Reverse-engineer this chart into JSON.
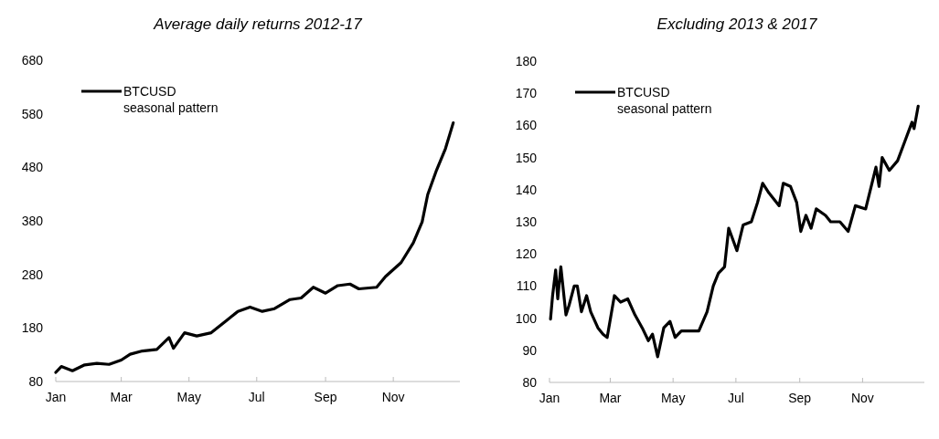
{
  "chart_data": [
    {
      "type": "line",
      "title": "Average daily returns 2012-17",
      "legend": "top left",
      "xlim": [
        "--01-01",
        "--12-31"
      ],
      "xticks": [
        {
          "value": "--01-01",
          "label": "Jan"
        },
        {
          "value": "--03-01",
          "label": "Mar"
        },
        {
          "value": "--05-01",
          "label": "May"
        },
        {
          "value": "--07-01",
          "label": "Jul"
        },
        {
          "value": "--09-01",
          "label": "Sep"
        },
        {
          "value": "--11-01",
          "label": "Nov"
        }
      ],
      "ylim": [
        80,
        680
      ],
      "yticks": [
        80,
        180,
        280,
        380,
        480,
        580,
        680
      ],
      "grid": false,
      "x": [
        "--01-01",
        "--01-06",
        "--01-16",
        "--01-27",
        "--02-07",
        "--02-18",
        "--03-01",
        "--03-09",
        "--03-20",
        "--04-02",
        "--04-13",
        "--04-17",
        "--04-27",
        "--05-08",
        "--05-21",
        "--06-04",
        "--06-14",
        "--06-25",
        "--07-06",
        "--07-17",
        "--07-31",
        "--08-10",
        "--08-21",
        "--09-01",
        "--09-12",
        "--09-23",
        "--10-01",
        "--10-17",
        "--10-25",
        "--11-08",
        "--11-19",
        "--11-27",
        "--12-02",
        "--12-10",
        "--12-18",
        "--12-25"
      ],
      "series": [
        {
          "name": "BTCUSD seasonal pattern",
          "color": "#000000",
          "values": [
            97,
            108,
            100,
            111,
            114,
            112,
            120,
            131,
            137,
            140,
            162,
            142,
            171,
            165,
            171,
            194,
            211,
            219,
            211,
            216,
            233,
            236,
            256,
            245,
            259,
            262,
            253,
            256,
            276,
            302,
            339,
            378,
            429,
            475,
            515,
            563
          ]
        }
      ]
    },
    {
      "type": "line",
      "title": "Excluding 2013 & 2017",
      "legend": "top left",
      "xlim": [
        "--01-01",
        "--12-31"
      ],
      "xticks": [
        {
          "value": "--01-01",
          "label": "Jan"
        },
        {
          "value": "--03-01",
          "label": "Mar"
        },
        {
          "value": "--05-01",
          "label": "May"
        },
        {
          "value": "--07-01",
          "label": "Jul"
        },
        {
          "value": "--09-01",
          "label": "Sep"
        },
        {
          "value": "--11-01",
          "label": "Nov"
        }
      ],
      "ylim": [
        80,
        180
      ],
      "yticks": [
        80,
        90,
        100,
        110,
        120,
        130,
        140,
        150,
        160,
        170,
        180
      ],
      "grid": false,
      "x": [
        "--01-02",
        "--01-04",
        "--01-07",
        "--01-09",
        "--01-12",
        "--01-17",
        "--01-20",
        "--01-25",
        "--01-28",
        "--02-01",
        "--02-06",
        "--02-10",
        "--02-17",
        "--02-22",
        "--02-26",
        "--03-05",
        "--03-11",
        "--03-18",
        "--03-25",
        "--04-01",
        "--04-07",
        "--04-11",
        "--04-16",
        "--04-22",
        "--04-28",
        "--05-03",
        "--05-09",
        "--05-17",
        "--05-26",
        "--06-03",
        "--06-09",
        "--06-14",
        "--06-20",
        "--06-24",
        "--07-02",
        "--07-08",
        "--07-16",
        "--07-22",
        "--07-27",
        "--08-02",
        "--08-12",
        "--08-16",
        "--08-23",
        "--08-29",
        "--09-02",
        "--09-07",
        "--09-12",
        "--09-17",
        "--09-26",
        "--10-01",
        "--10-10",
        "--10-18",
        "--10-25",
        "--11-04",
        "--11-14",
        "--11-17",
        "--11-20",
        "--11-27",
        "--12-05",
        "--12-12",
        "--12-19",
        "--12-21",
        "--12-25"
      ],
      "series": [
        {
          "name": "BTCUSD seasonal pattern",
          "color": "#000000",
          "values": [
            99.7,
            107,
            115,
            106,
            116,
            101,
            104,
            110,
            110,
            102,
            107,
            102,
            97,
            95,
            94,
            107,
            105,
            106,
            101,
            97,
            93,
            95,
            88,
            97,
            99,
            94,
            96,
            96,
            96,
            102,
            110,
            114,
            116,
            128,
            121,
            129,
            130,
            136,
            142,
            139,
            135,
            142,
            141,
            136,
            127,
            132,
            128,
            134,
            132,
            130,
            130,
            127,
            135,
            134,
            147,
            141,
            150,
            146,
            149,
            155,
            161,
            159,
            166
          ]
        }
      ]
    }
  ]
}
